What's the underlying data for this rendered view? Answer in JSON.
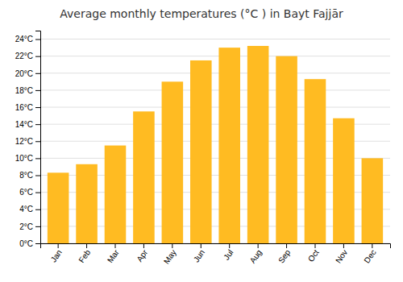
{
  "chart_data": {
    "type": "bar",
    "title": "Average monthly temperatures (°C ) in Bayt Fajjār",
    "categories": [
      "Jan",
      "Feb",
      "Mar",
      "Apr",
      "May",
      "Jun",
      "Jul",
      "Aug",
      "Sep",
      "Oct",
      "Nov",
      "Dec"
    ],
    "values": [
      8.3,
      9.3,
      11.5,
      15.5,
      19.0,
      21.5,
      23.0,
      23.2,
      22.0,
      19.3,
      14.7,
      10.0
    ],
    "color": "#FFBB22",
    "ylim": [
      0,
      25
    ],
    "yticks": [
      {
        "value": 0,
        "label": "0°C"
      },
      {
        "value": 2,
        "label": "2°C"
      },
      {
        "value": 4,
        "label": "4°C"
      },
      {
        "value": 6,
        "label": "6°C"
      },
      {
        "value": 8,
        "label": "8°C"
      },
      {
        "value": 10,
        "label": "10°C"
      },
      {
        "value": 12,
        "label": "12°C"
      },
      {
        "value": 14,
        "label": "14°C"
      },
      {
        "value": 16,
        "label": "16°C"
      },
      {
        "value": 18,
        "label": "18°C"
      },
      {
        "value": 20,
        "label": "20°C"
      },
      {
        "value": 22,
        "label": "22°C"
      },
      {
        "value": 24,
        "label": "24°C"
      }
    ],
    "grid": true
  }
}
